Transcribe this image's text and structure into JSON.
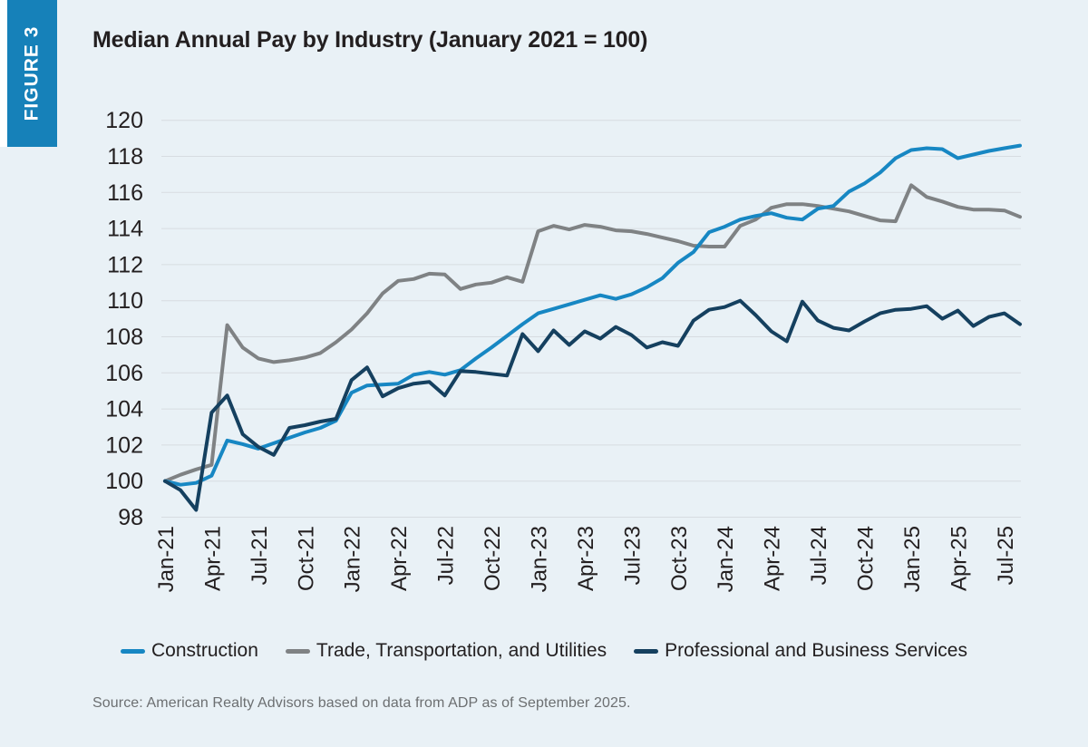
{
  "figure_label": "FIGURE 3",
  "title": "Median Annual Pay by Industry (January 2021 = 100)",
  "source_note": "Source: American Realty Advisors based on data from ADP as of September 2025.",
  "colors": {
    "background": "#e9f1f6",
    "banner": "#1681b9",
    "gridline": "#d7dce1",
    "axis_text": "#231f20",
    "construction": "#1787c3",
    "trade_transportation_utilities": "#7f8284",
    "professional_business_services": "#15405f"
  },
  "chart_data": {
    "type": "line",
    "title": "Median Annual Pay by Industry (January 2021 = 100)",
    "xlabel": "",
    "ylabel": "",
    "ylim": [
      98,
      120
    ],
    "ytick_step": 2,
    "grid": "horizontal",
    "legend_position": "bottom",
    "x_tick_every": 3,
    "x": [
      "Jan-21",
      "Feb-21",
      "Mar-21",
      "Apr-21",
      "May-21",
      "Jun-21",
      "Jul-21",
      "Aug-21",
      "Sep-21",
      "Oct-21",
      "Nov-21",
      "Dec-21",
      "Jan-22",
      "Feb-22",
      "Mar-22",
      "Apr-22",
      "May-22",
      "Jun-22",
      "Jul-22",
      "Aug-22",
      "Sep-22",
      "Oct-22",
      "Nov-22",
      "Dec-22",
      "Jan-23",
      "Feb-23",
      "Mar-23",
      "Apr-23",
      "May-23",
      "Jun-23",
      "Jul-23",
      "Aug-23",
      "Sep-23",
      "Oct-23",
      "Nov-23",
      "Dec-23",
      "Jan-24",
      "Feb-24",
      "Mar-24",
      "Apr-24",
      "May-24",
      "Jun-24",
      "Jul-24",
      "Aug-24",
      "Sep-24",
      "Oct-24",
      "Nov-24",
      "Dec-24",
      "Jan-25",
      "Feb-25",
      "Mar-25",
      "Apr-25",
      "May-25",
      "Jun-25",
      "Jul-25",
      "Aug-25"
    ],
    "series": [
      {
        "name": "Construction",
        "color": "#1787c3",
        "values": [
          100,
          99.8,
          99.9,
          100.3,
          102.25,
          102.05,
          101.8,
          102.1,
          102.4,
          102.7,
          102.95,
          103.35,
          104.9,
          105.3,
          105.35,
          105.4,
          105.9,
          106.05,
          105.9,
          106.15,
          106.8,
          107.4,
          108.05,
          108.7,
          109.3,
          109.55,
          109.8,
          110.05,
          110.3,
          110.1,
          110.35,
          110.75,
          111.25,
          112.1,
          112.7,
          113.8,
          114.1,
          114.5,
          114.7,
          114.85,
          114.6,
          114.5,
          115.1,
          115.25,
          116.05,
          116.5,
          117.1,
          117.9,
          118.35,
          118.45,
          118.4,
          117.9,
          118.1,
          118.3,
          118.45,
          118.6
        ]
      },
      {
        "name": "Trade, Transportation, and Utilities",
        "color": "#7f8284",
        "values": [
          100,
          100.35,
          100.65,
          100.9,
          108.65,
          107.4,
          106.8,
          106.6,
          106.7,
          106.85,
          107.1,
          107.7,
          108.4,
          109.3,
          110.4,
          111.1,
          111.2,
          111.5,
          111.45,
          110.65,
          110.9,
          111.0,
          111.3,
          111.05,
          113.85,
          114.15,
          113.95,
          114.2,
          114.1,
          113.9,
          113.85,
          113.7,
          113.5,
          113.3,
          113.05,
          113.0,
          113.0,
          114.15,
          114.5,
          115.15,
          115.35,
          115.35,
          115.25,
          115.1,
          114.95,
          114.7,
          114.45,
          114.4,
          116.4,
          115.75,
          115.5,
          115.2,
          115.05,
          115.05,
          115.0,
          114.65
        ]
      },
      {
        "name": "Professional and Business Services",
        "color": "#15405f",
        "values": [
          100,
          99.5,
          98.4,
          103.8,
          104.75,
          102.6,
          101.9,
          101.45,
          102.95,
          103.1,
          103.3,
          103.45,
          105.6,
          106.3,
          104.7,
          105.15,
          105.4,
          105.5,
          104.75,
          106.1,
          106.05,
          105.95,
          105.85,
          108.15,
          107.2,
          108.35,
          107.55,
          108.3,
          107.9,
          108.55,
          108.1,
          107.4,
          107.7,
          107.5,
          108.9,
          109.5,
          109.65,
          110.0,
          109.2,
          108.3,
          107.75,
          109.95,
          108.9,
          108.5,
          108.35,
          108.85,
          109.3,
          109.5,
          109.55,
          109.7,
          109.0,
          109.45,
          108.6,
          109.1,
          109.3,
          108.7
        ]
      }
    ]
  }
}
